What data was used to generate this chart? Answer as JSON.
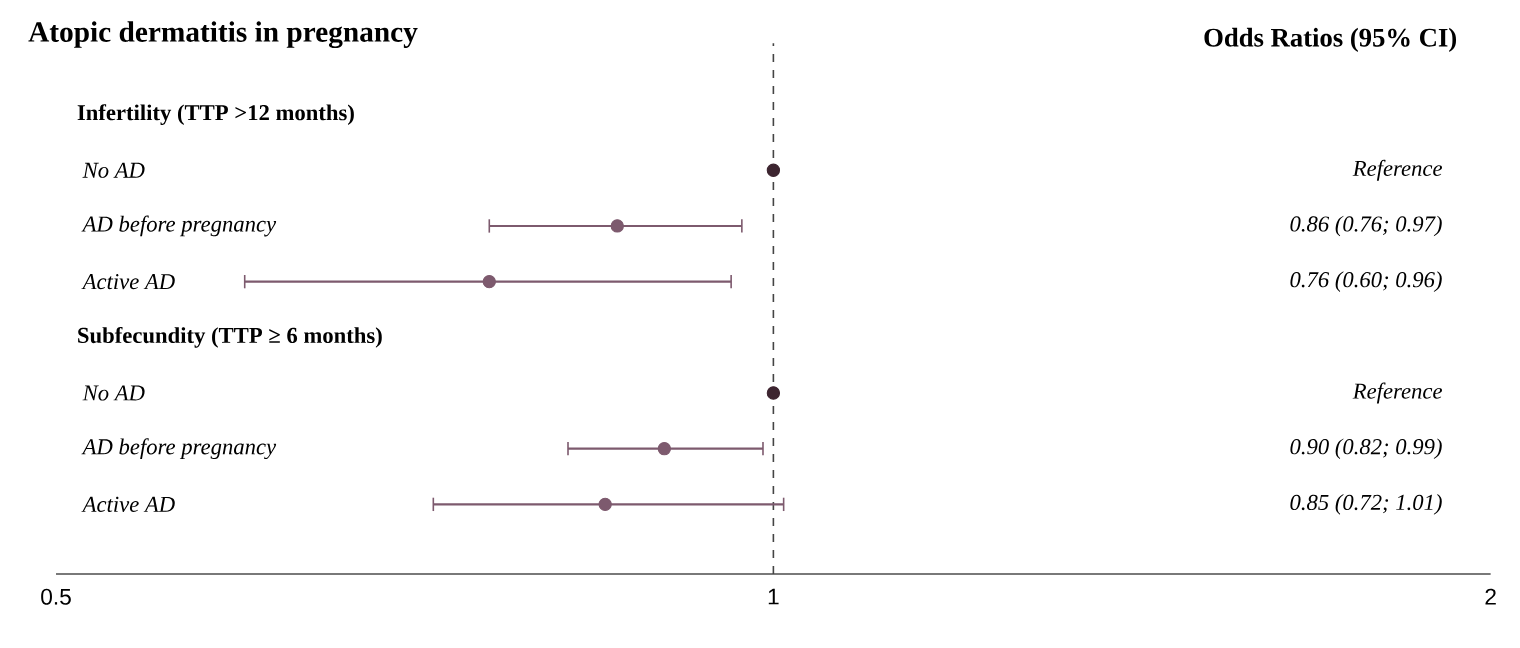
{
  "chart_data": {
    "type": "scatter",
    "orientation": "horizontal",
    "title": "Atopic dermatitis in pregnancy",
    "annotations": [
      "Odds Ratios (95% CI)",
      "Reference",
      "0.86 (0.76; 0.97)",
      "0.76 (0.60; 0.96)",
      "Reference",
      "0.90 (0.82; 0.99)",
      "0.85 (0.72; 1.01)"
    ],
    "categories": [
      "Infertility (TTP >12 months)",
      "No AD",
      "AD before pregnancy",
      "Active AD",
      "Subfecundity (TTP ≥ 6 months)",
      "No AD",
      "AD before pregnancy",
      "Active AD"
    ],
    "values": [
      null,
      1,
      0.86,
      0.76,
      null,
      1,
      0.9,
      0.85
    ],
    "errors": [
      null,
      null,
      [
        0.76,
        0.97
      ],
      [
        0.6,
        0.96
      ],
      null,
      null,
      [
        0.82,
        0.99
      ],
      [
        0.72,
        1.01
      ]
    ],
    "colors": [
      null,
      "#3d2530",
      "#7d5a6e",
      "#7d5a6e",
      null,
      "#3d2530",
      "#7d5a6e",
      "#7d5a6e"
    ],
    "log": "x",
    "xlim": [
      0.5,
      2
    ],
    "xticks": [
      0.5,
      1,
      2
    ],
    "marker": "circle",
    "ref_lines": [
      {
        "axis": "x",
        "value": 1,
        "line_style": "dashed",
        "color": "#444444"
      }
    ]
  }
}
